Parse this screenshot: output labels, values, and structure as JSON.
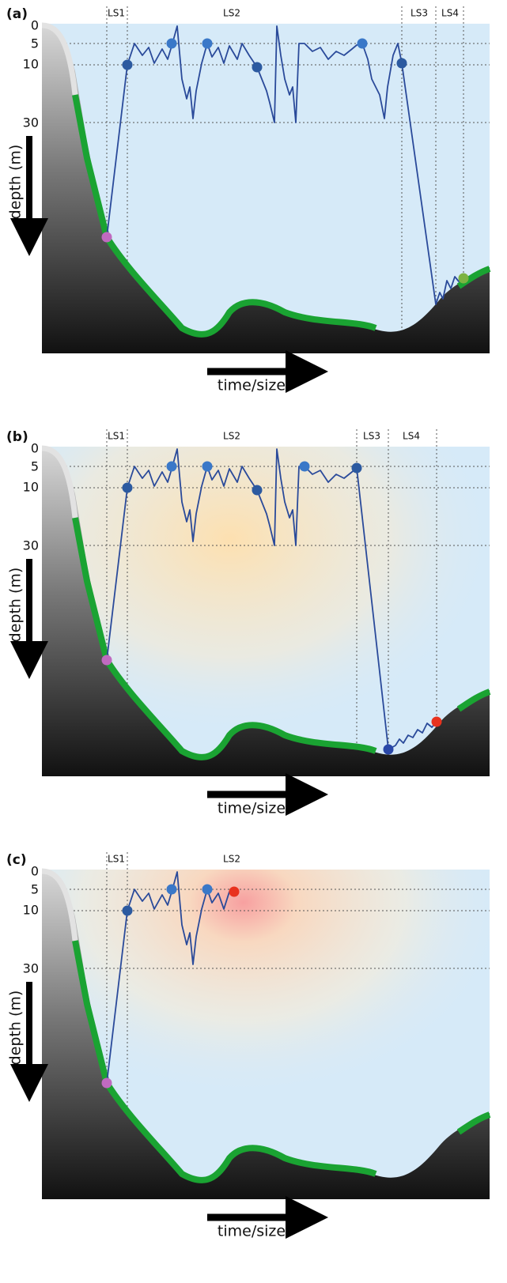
{
  "panels": [
    {
      "label": "(a)",
      "phases": [
        "LS1",
        "LS2",
        "LS3",
        "LS4"
      ],
      "depth_ticks": [
        "0",
        "5",
        "10",
        "30"
      ],
      "y_axis_label": "depth (m)",
      "x_axis_label": "time/size"
    },
    {
      "label": "(b)",
      "phases": [
        "LS1",
        "LS2",
        "LS3",
        "LS4"
      ],
      "depth_ticks": [
        "0",
        "5",
        "10",
        "30"
      ],
      "y_axis_label": "depth (m)",
      "x_axis_label": "time/size"
    },
    {
      "label": "(c)",
      "phases": [
        "LS1",
        "LS2"
      ],
      "depth_ticks": [
        "0",
        "5",
        "10",
        "30"
      ],
      "y_axis_label": "depth (m)",
      "x_axis_label": "time/size"
    }
  ]
}
